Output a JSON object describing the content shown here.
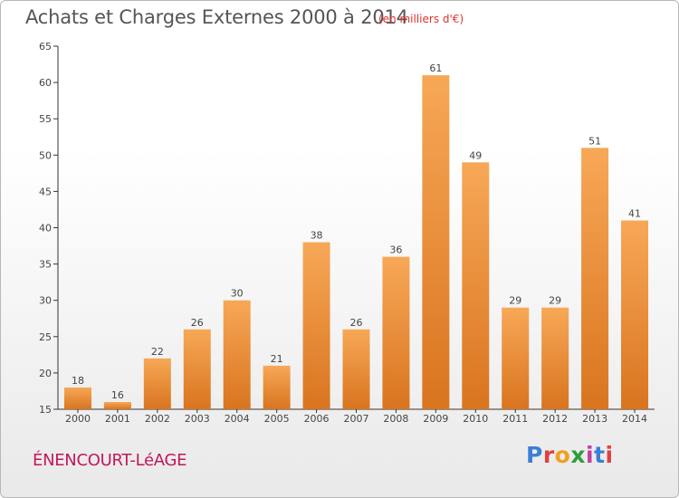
{
  "title": "Achats et Charges Externes 2000 à 2014",
  "subtitle": "(en milliers d'€)",
  "town": "ÉNENCOURT-LéAGE",
  "logo": {
    "text": "Proxiti",
    "letters": [
      {
        "ch": "P",
        "color": "#3a7fd5"
      },
      {
        "ch": "r",
        "color": "#e04040"
      },
      {
        "ch": "o",
        "color": "#f0a020"
      },
      {
        "ch": "x",
        "color": "#2e9d3a"
      },
      {
        "ch": "i",
        "color": "#c040a0"
      },
      {
        "ch": "t",
        "color": "#3a7fd5"
      },
      {
        "ch": "i",
        "color": "#e04040"
      }
    ]
  },
  "colors": {
    "bar_top": "#f7a857",
    "bar_bottom": "#d9741f",
    "axis": "#333333",
    "title": "#555555",
    "subtitle": "#e0322f",
    "town": "#c2185b"
  },
  "chart_data": {
    "type": "bar",
    "categories": [
      "2000",
      "2001",
      "2002",
      "2003",
      "2004",
      "2005",
      "2006",
      "2007",
      "2008",
      "2009",
      "2010",
      "2011",
      "2012",
      "2013",
      "2014"
    ],
    "values": [
      18,
      16,
      22,
      26,
      30,
      21,
      38,
      26,
      36,
      61,
      49,
      29,
      29,
      51,
      41
    ],
    "title": "Achats et Charges Externes 2000 à 2014",
    "ylim": [
      15,
      65
    ],
    "yticks": [
      15,
      20,
      25,
      30,
      35,
      40,
      45,
      50,
      55,
      60,
      65
    ],
    "grid": false,
    "data_labels": true
  }
}
